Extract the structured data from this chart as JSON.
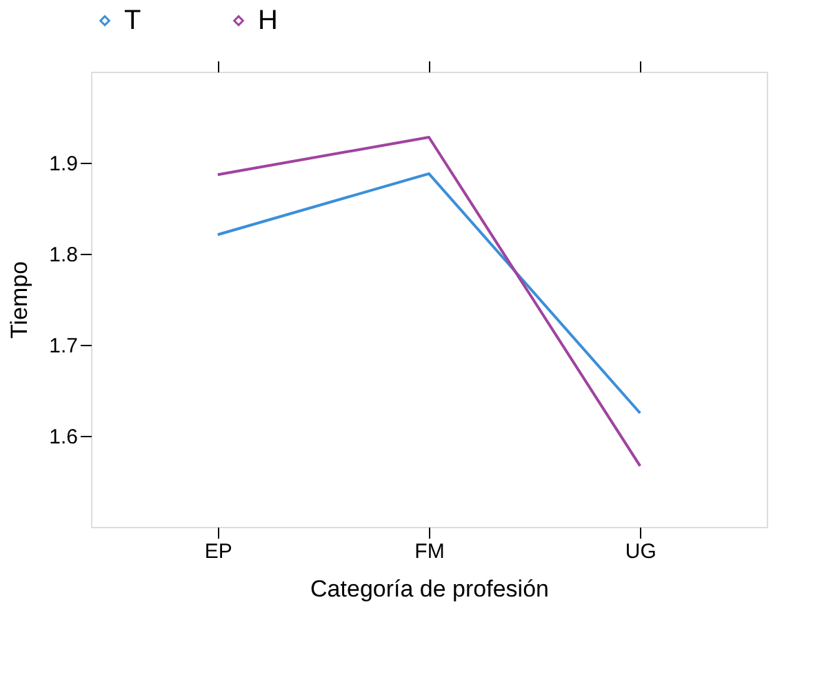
{
  "chart_data": {
    "type": "line",
    "xlabel": "Categoría de profesión",
    "ylabel": "Tiempo",
    "categories": [
      "EP",
      "FM",
      "UG"
    ],
    "series": [
      {
        "name": "T",
        "color": "#3b8fd8",
        "values": [
          1.821,
          1.888,
          1.625
        ]
      },
      {
        "name": "H",
        "color": "#a0439f",
        "values": [
          1.887,
          1.928,
          1.567
        ]
      }
    ],
    "ylim": [
      1.5,
      2.0
    ],
    "yticks": [
      1.6,
      1.7,
      1.8,
      1.9
    ],
    "grid": false,
    "legend": "top",
    "marker": "none",
    "line_style": "solid"
  }
}
